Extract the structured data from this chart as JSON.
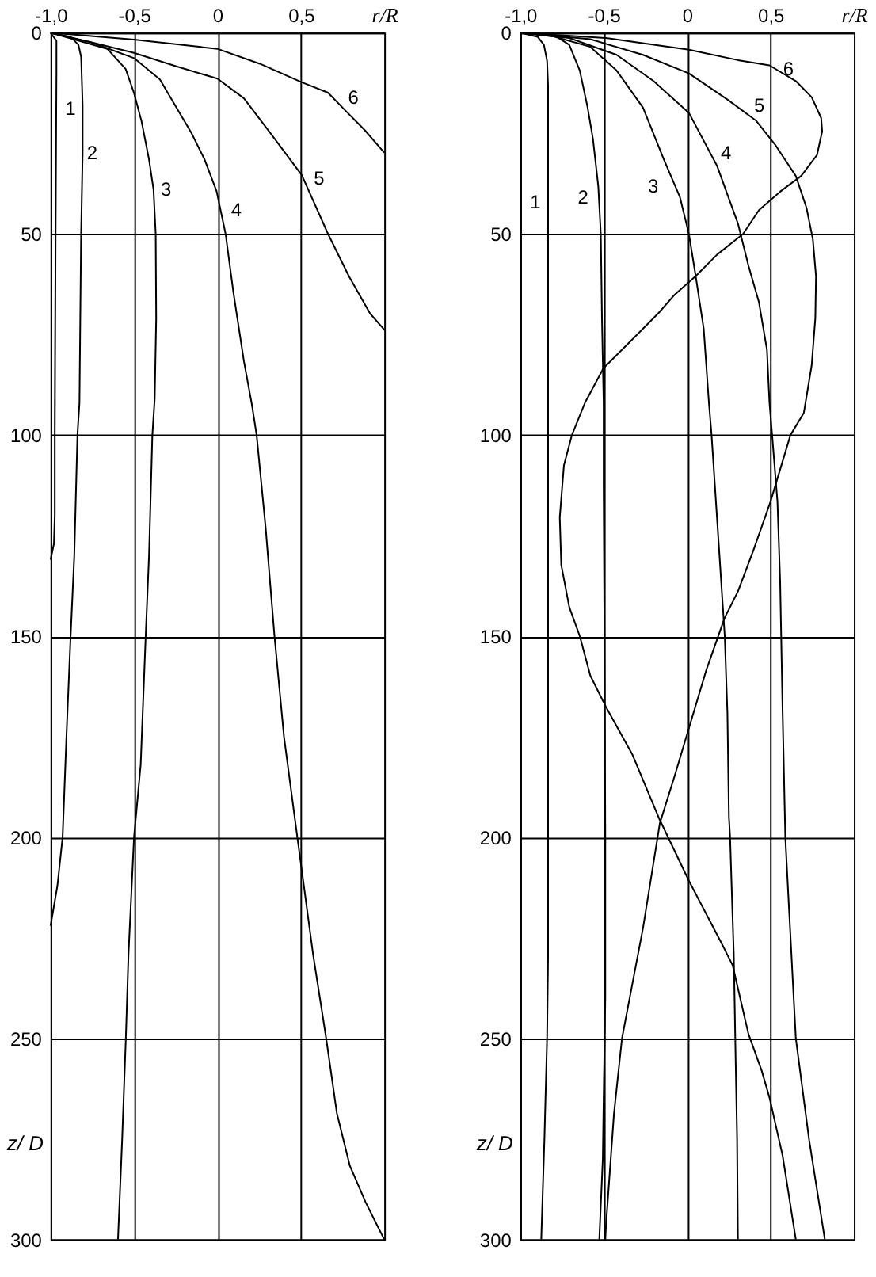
{
  "chart_data": [
    {
      "type": "line",
      "xlabel": "r/R",
      "ylabel": "z/ D",
      "xlim": [
        -1,
        1
      ],
      "ylim": [
        300,
        0
      ],
      "xticks": [
        {
          "value": -1,
          "label": "-1,0"
        },
        {
          "value": -0.5,
          "label": "-0,5"
        },
        0,
        {
          "value": 0.5,
          "label": "0,5"
        }
      ],
      "yticks": [
        0,
        50,
        100,
        150,
        200,
        250,
        300
      ],
      "grid": true,
      "series": [
        {
          "name": "1",
          "color": "#000000",
          "x": [
            -1,
            -0.965,
            -0.965,
            -0.97,
            -0.975,
            -0.975,
            -0.98,
            -1
          ],
          "values": [
            0,
            2,
            10,
            50,
            100,
            120,
            127,
            131
          ]
        },
        {
          "name": "2",
          "color": "#000000",
          "x": [
            -1,
            -0.88,
            -0.833,
            -0.817,
            -0.808,
            -0.808,
            -0.817,
            -0.827,
            -0.839,
            -0.858,
            -0.88,
            -0.905,
            -0.928,
            -0.959,
            -1
          ],
          "values": [
            0,
            1,
            3,
            6,
            18,
            30,
            50,
            92,
            100,
            130,
            150,
            175,
            200,
            212,
            222
          ]
        },
        {
          "name": "3",
          "color": "#000000",
          "x": [
            -1,
            -0.66,
            -0.55,
            -0.5,
            -0.455,
            -0.41,
            -0.383,
            -0.37,
            -0.367,
            -0.376,
            -0.39,
            -0.41,
            -0.43,
            -0.46,
            -0.5,
            -0.533,
            -0.549,
            -0.571,
            -0.596
          ],
          "values": [
            0,
            4,
            9,
            15,
            22,
            31.5,
            39,
            50,
            71,
            91,
            100,
            130,
            150,
            182,
            200,
            229,
            250,
            275,
            300
          ]
        },
        {
          "name": "4",
          "color": "#000000",
          "x": [
            -1,
            -0.75,
            -0.5,
            -0.345,
            -0.25,
            -0.156,
            -0.077,
            -0.005,
            0.049,
            0.096,
            0.159,
            0.206,
            0.235,
            0.289,
            0.342,
            0.399,
            0.479,
            0.51,
            0.573,
            0.652,
            0.716,
            0.794,
            0.889,
            1
          ],
          "values": [
            0,
            2.5,
            6.3,
            11.6,
            18.3,
            24.9,
            31.5,
            39.4,
            50,
            64.6,
            81.7,
            92.3,
            100,
            123,
            150,
            175,
            200,
            209.5,
            229,
            250,
            268.6,
            281.7,
            290.8,
            300
          ]
        },
        {
          "name": "5",
          "color": "#000000",
          "x": [
            -1,
            -0.754,
            -0.5,
            -0.25,
            0,
            0.159,
            0.317,
            0.506,
            0.663,
            0.789,
            0.915,
            1
          ],
          "values": [
            0,
            2.4,
            5,
            8.3,
            11.4,
            16.3,
            24.9,
            35.4,
            50,
            60.6,
            69.8,
            73.8
          ]
        },
        {
          "name": "6",
          "color": "#000000",
          "x": [
            -1,
            -0.5,
            0,
            0.254,
            0.506,
            0.663,
            0.757,
            0.883,
            1
          ],
          "values": [
            0,
            1.7,
            4,
            7.7,
            12.3,
            14.9,
            18.9,
            24.2,
            29.8
          ]
        }
      ]
    },
    {
      "type": "line",
      "xlabel": "r/R",
      "ylabel": "z/ D",
      "xlim": [
        -1,
        1
      ],
      "ylim": [
        300,
        0
      ],
      "xticks": [
        {
          "value": -1,
          "label": "-1,0"
        },
        {
          "value": -0.5,
          "label": "-0,5"
        },
        0,
        {
          "value": 0.5,
          "label": "0,5"
        }
      ],
      "yticks": [
        0,
        50,
        100,
        150,
        200,
        250,
        300
      ],
      "grid": true,
      "series": [
        {
          "name": "1",
          "color": "#000000",
          "x": [
            -1,
            -0.896,
            -0.858,
            -0.839,
            -0.833,
            -0.833,
            -0.839,
            -0.855,
            -0.874
          ],
          "values": [
            0,
            1,
            3,
            7,
            13,
            230,
            250,
            275,
            300
          ]
        },
        {
          "name": "2",
          "color": "#000000",
          "x": [
            -1,
            -0.8,
            -0.706,
            -0.643,
            -0.596,
            -0.564,
            -0.532,
            -0.517,
            -0.51,
            -0.5,
            -0.5,
            -0.495,
            -0.49,
            -0.49,
            -0.5,
            -0.505,
            -0.526
          ],
          "values": [
            0,
            0.5,
            3,
            9.4,
            18.6,
            26.4,
            38.2,
            50,
            71,
            92,
            112,
            150,
            200,
            240,
            265,
            280,
            300
          ]
        },
        {
          "name": "3",
          "color": "#000000",
          "x": [
            -1,
            -0.8,
            -0.58,
            -0.422,
            -0.264,
            -0.137,
            -0.043,
            0.011,
            0.052,
            0.1,
            0.131,
            0.147,
            0.194,
            0.226,
            0.242,
            0.251,
            0.258,
            0.28,
            0.289,
            0.3,
            0.305
          ],
          "values": [
            0,
            0.9,
            3.5,
            9.4,
            18.6,
            31.7,
            40.8,
            50,
            60.5,
            73.6,
            91.9,
            100,
            129.7,
            150,
            169,
            195,
            200,
            229,
            250,
            275,
            300
          ]
        },
        {
          "name": "4",
          "color": "#000000",
          "x": [
            -1,
            -0.706,
            -0.422,
            -0.201,
            0.011,
            0.179,
            0.305,
            0.368,
            0.431,
            0.479,
            0.494,
            0.51,
            0.542,
            0.558,
            0.573,
            0.589,
            0.652,
            0.732,
            0.826
          ],
          "values": [
            0,
            1.3,
            5.5,
            12,
            19.9,
            33,
            47.4,
            57.9,
            67,
            78.8,
            91.9,
            100,
            116.6,
            136.2,
            169,
            200,
            250,
            275.3,
            300
          ]
        },
        {
          "name": "5",
          "color": "#000000",
          "x": [
            -1,
            -0.58,
            -0.264,
            0.011,
            0.242,
            0.415,
            0.526,
            0.652,
            0.716,
            0.754,
            0.773,
            0.769,
            0.747,
            0.7,
            0.62,
            0.5,
            0.4,
            0.305,
            0.226,
            0.115,
            0.011,
            -0.074,
            -0.163,
            -0.264,
            -0.39,
            -0.438,
            -0.485,
            -0.49
          ],
          "values": [
            0,
            1.6,
            5.5,
            10.1,
            16.6,
            21.9,
            27.7,
            35.6,
            43.5,
            51.3,
            60.5,
            70.9,
            82.7,
            94.5,
            100,
            116.6,
            128.4,
            138.9,
            145.4,
            158.5,
            172.9,
            184.7,
            196.5,
            222.6,
            250,
            268.7,
            296,
            300
          ]
        },
        {
          "name": "6",
          "color": "#000000",
          "x": [
            -1,
            -0.485,
            0.011,
            0.305,
            0.494,
            0.652,
            0.747,
            0.804,
            0.81,
            0.779,
            0.684,
            0.558,
            0.431,
            0.336,
            0.179,
            0.052,
            -0.074,
            -0.169,
            -0.327,
            -0.501,
            -0.611,
            -0.69,
            -0.738,
            -0.763,
            -0.754,
            -0.706,
            -0.643,
            -0.58,
            -0.485,
            -0.327,
            -0.169,
            0.011,
            0.21,
            0.273,
            0.368,
            0.447,
            0.494,
            0.573,
            0.652
          ],
          "values": [
            0,
            1.3,
            4.2,
            6.8,
            8.1,
            12,
            16,
            21.2,
            24.5,
            30.4,
            35.6,
            39.5,
            44.1,
            50,
            55.2,
            60.5,
            65.1,
            69.6,
            76.2,
            83.4,
            91.9,
            100,
            107.5,
            120.5,
            132.3,
            142.8,
            150,
            159.8,
            167.7,
            179.5,
            195.2,
            210.8,
            226.6,
            231.8,
            248.9,
            258,
            264.7,
            279.2,
            300
          ]
        }
      ]
    }
  ]
}
